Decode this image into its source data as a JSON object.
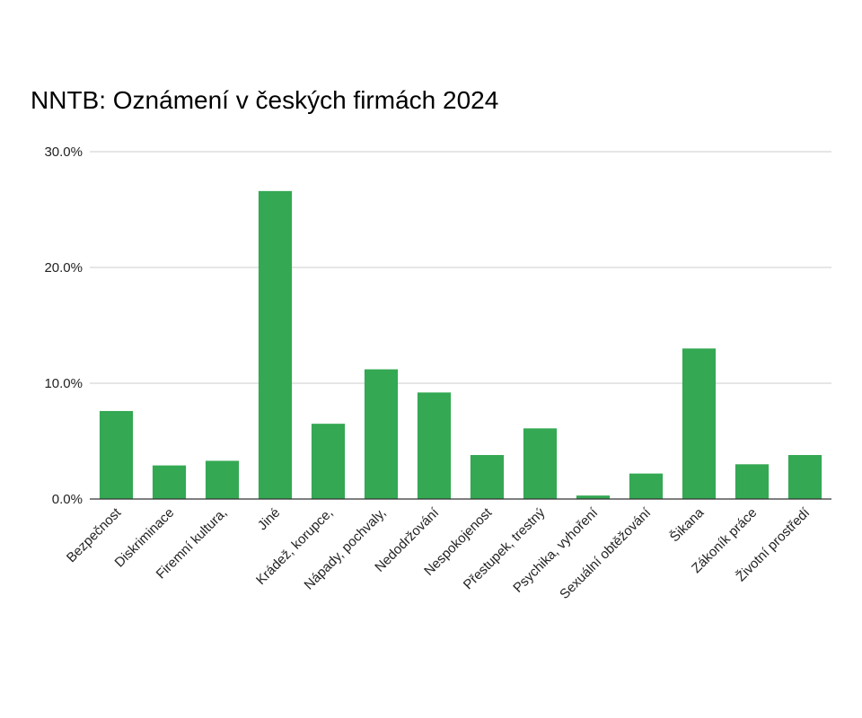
{
  "chart_data": {
    "type": "bar",
    "title": "NNTB: Oznámení v českých firmách 2024",
    "xlabel": "",
    "ylabel": "",
    "ylim": [
      0,
      30
    ],
    "yticks": [
      0,
      10,
      20,
      30
    ],
    "ytick_labels": [
      "0.0%",
      "10.0%",
      "20.0%",
      "30.0%"
    ],
    "grid": true,
    "legend": "none",
    "bar_color": "#34a853",
    "categories": [
      "Bezpečnost",
      "Diskriminace",
      "Firemní kultura,",
      "Jiné",
      "Krádež, korupce,",
      "Nápady, pochvaly,",
      "Nedodržování",
      "Nespokojenost",
      "Přestupek, trestný",
      "Psychika, vyhoření",
      "Sexuální obtěžování",
      "Šikana",
      "Zákoník práce",
      "Životní prostředí"
    ],
    "values": [
      7.6,
      2.9,
      3.3,
      26.6,
      6.5,
      11.2,
      9.2,
      3.8,
      6.1,
      0.3,
      2.2,
      13.0,
      3.0,
      3.8
    ]
  }
}
